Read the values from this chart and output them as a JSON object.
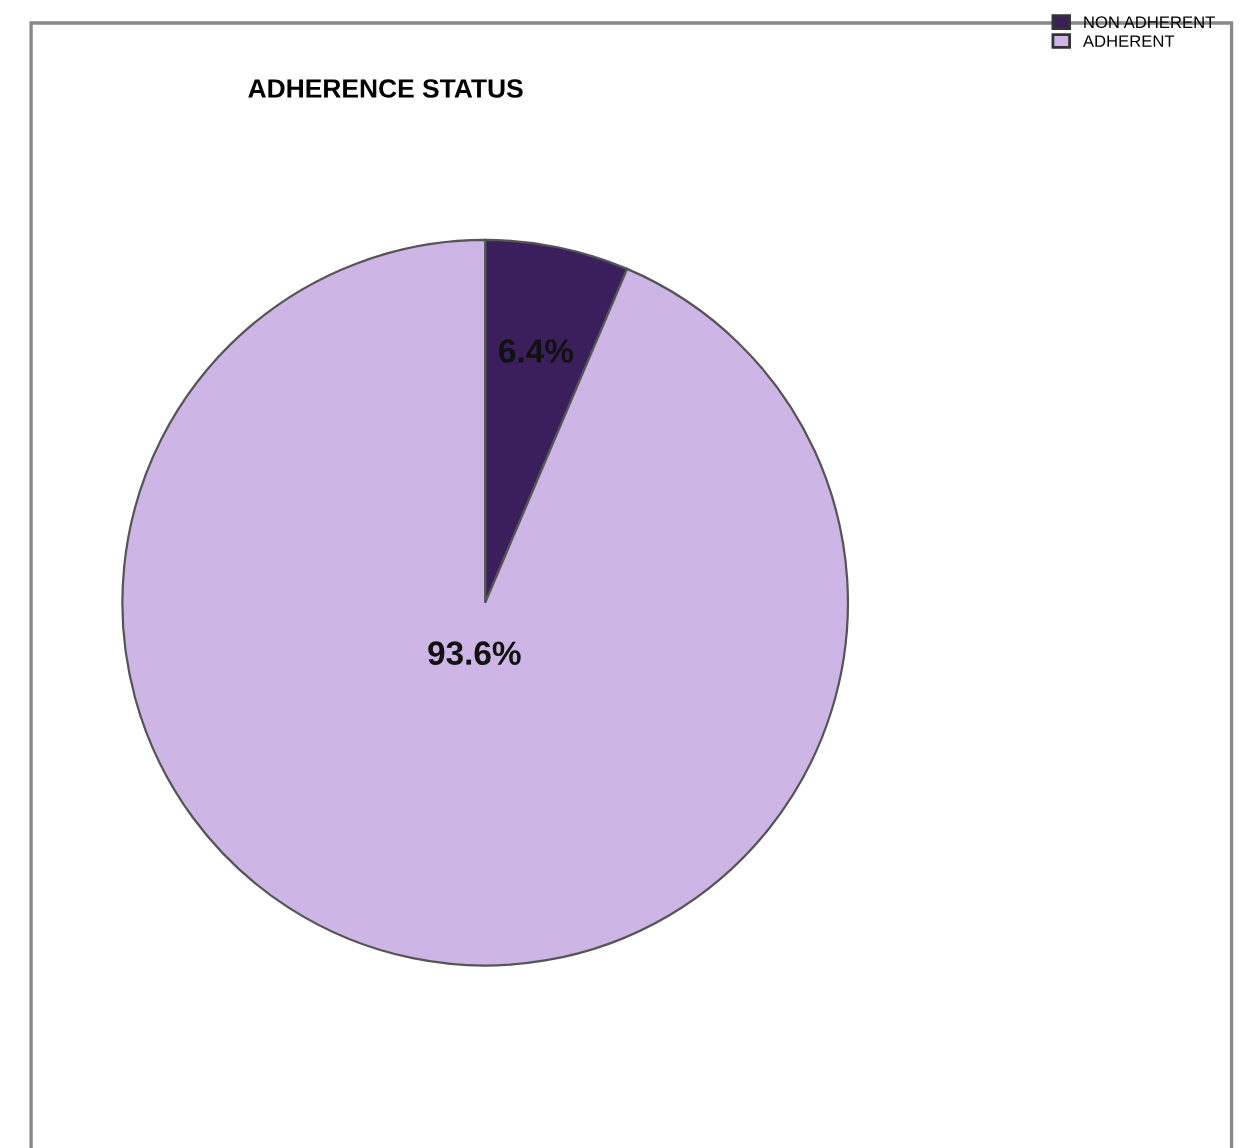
{
  "chart_data": {
    "type": "pie",
    "title": "ADHERENCE STATUS",
    "categories": [
      "NON ADHERENT",
      "ADHERENT"
    ],
    "values": [
      6.4,
      93.6
    ],
    "colors": [
      "#3a1f5c",
      "#cdb6e6"
    ],
    "value_labels": [
      "6.4%",
      "93.6%"
    ],
    "legend": "top right"
  }
}
